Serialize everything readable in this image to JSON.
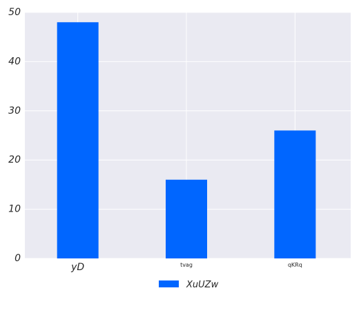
{
  "chart_data": {
    "type": "bar",
    "categories": [
      "yD",
      "tvag",
      "qKRq"
    ],
    "series": [
      {
        "name": "XuUZw",
        "values": [
          48,
          16,
          26
        ]
      }
    ],
    "title": "",
    "xlabel": "",
    "ylabel": "",
    "ylim": [
      0,
      50
    ],
    "yticks": [
      "0",
      "10",
      "20",
      "30",
      "40",
      "50"
    ],
    "grid": true,
    "legend_position": "bottom-center",
    "colors": {
      "bar": "#0066ff",
      "plot_background": "#eaeaf2",
      "grid": "#ffffff"
    }
  }
}
